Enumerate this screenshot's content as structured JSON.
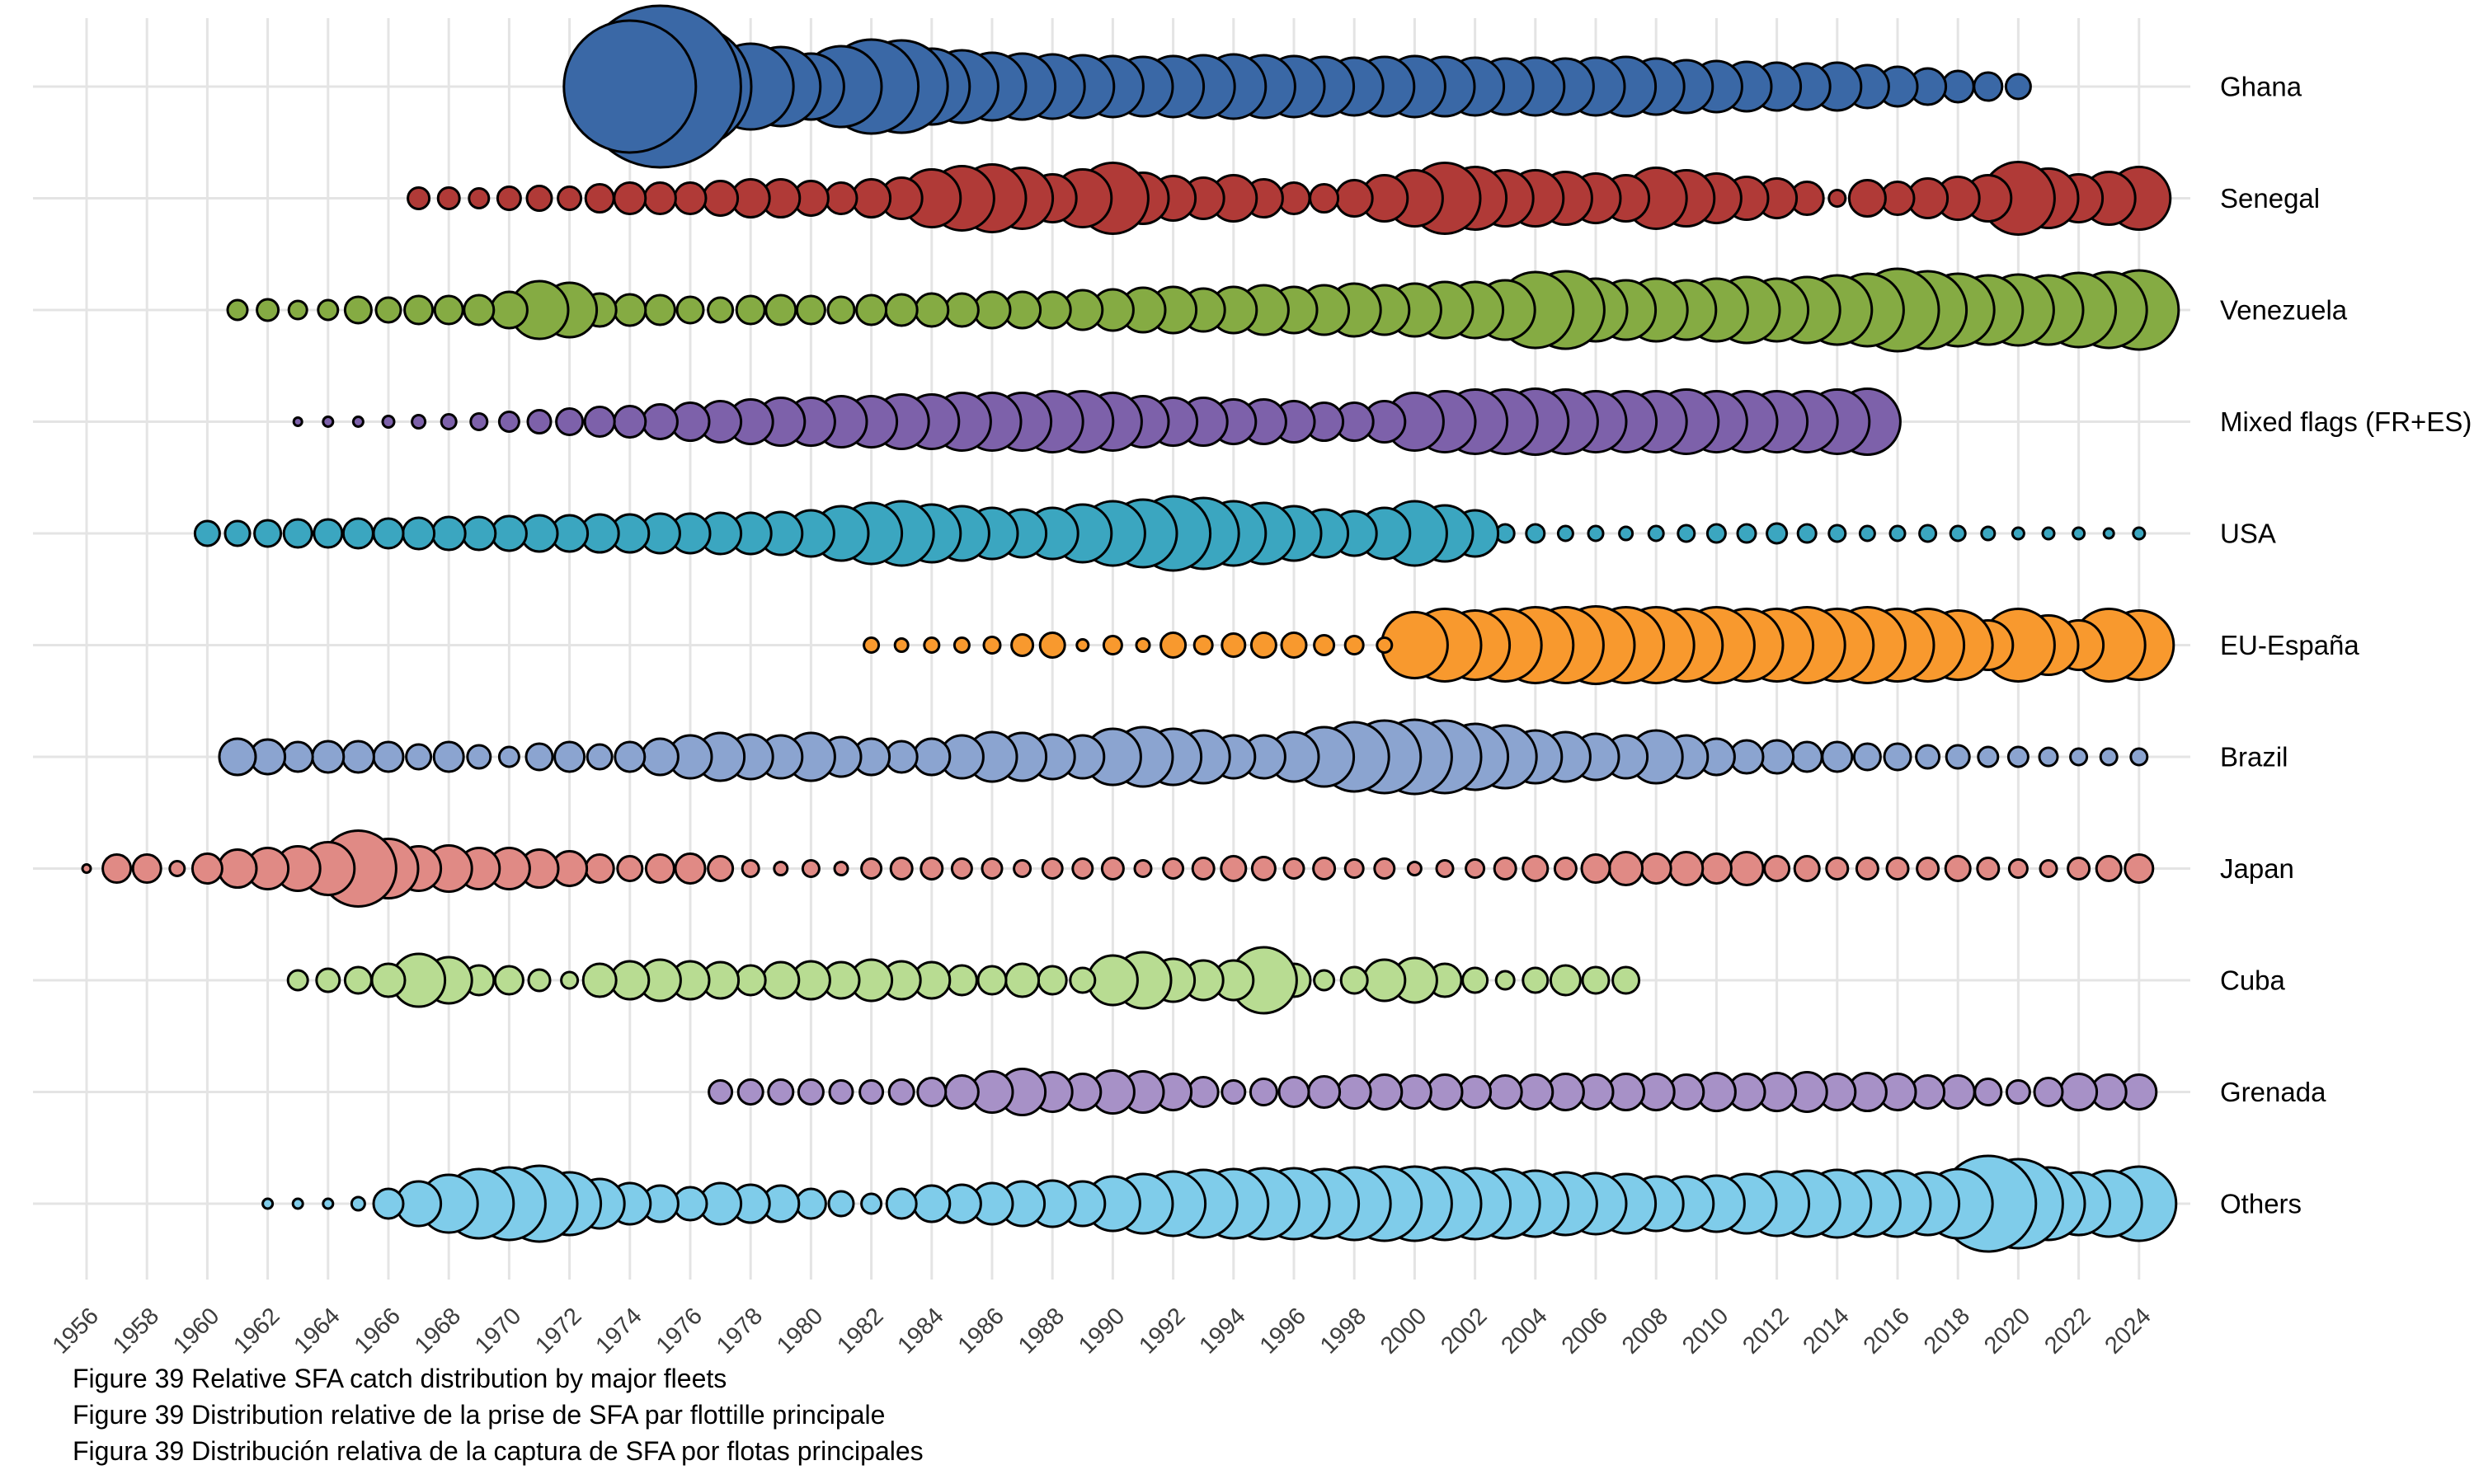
{
  "figure": {
    "captions": [
      "Figure 39 Relative SFA catch distribution by major fleets",
      "Figure 39 Distribution relative de la prise de SFA par flottille principale",
      "Figura 39 Distribución relativa de la captura de SFA por flotas principales"
    ]
  },
  "chart_data": {
    "type": "bubble",
    "title": "Relative SFA catch distribution by major fleets",
    "xlabel": "",
    "ylabel": "",
    "x_axis": {
      "start": 1956,
      "end": 2024,
      "tick_interval": 2,
      "tick_label_angle": -45,
      "tick_color": "#3d3d3d"
    },
    "grid": {
      "on": true,
      "color": "#e4e4e4"
    },
    "legend_position": "row-labels-right",
    "bubble_stroke": "#000000",
    "size_meaning": "bubble radius = relative annual SFA catch of the fleet (px at 3000px canvas width)",
    "series": [
      {
        "name": "Ghana",
        "color": "#3a68a6",
        "start_year": 1974,
        "radii": [
          80,
          98,
          74,
          28,
          52,
          48,
          40,
          49,
          57,
          56,
          46,
          44,
          41,
          40,
          39,
          38,
          37,
          36,
          37,
          38,
          39,
          38,
          37,
          36,
          35,
          36,
          37,
          36,
          35,
          34,
          35,
          34,
          35,
          36,
          34,
          32,
          31,
          30,
          29,
          28,
          29,
          26,
          24,
          22,
          19,
          17,
          15
        ]
      },
      {
        "name": "Senegal",
        "color": "#b03a37",
        "start_year": 1967,
        "radii": [
          13,
          13,
          12,
          14,
          15,
          14,
          17,
          19,
          19,
          19,
          21,
          23,
          23,
          21,
          19,
          23,
          25,
          35,
          39,
          41,
          37,
          29,
          35,
          43,
          31,
          27,
          25,
          28,
          23,
          19,
          17,
          22,
          28,
          34,
          43,
          38,
          34,
          34,
          32,
          30,
          28,
          37,
          34,
          30,
          26,
          24,
          20,
          10,
          22,
          20,
          24,
          26,
          28,
          44,
          36,
          29,
          32,
          38
        ]
      },
      {
        "name": "Venezuela",
        "color": "#85ab43",
        "start_year": 1961,
        "radii": [
          12,
          13,
          11,
          12,
          16,
          15,
          17,
          17,
          18,
          22,
          35,
          33,
          20,
          19,
          18,
          16,
          15,
          17,
          18,
          17,
          16,
          18,
          19,
          20,
          20,
          22,
          22,
          22,
          24,
          25,
          27,
          28,
          26,
          28,
          30,
          28,
          30,
          32,
          30,
          32,
          34,
          34,
          36,
          46,
          47,
          38,
          36,
          38,
          36,
          38,
          40,
          38,
          40,
          42,
          44,
          50,
          47,
          44,
          42,
          43,
          42,
          45,
          46,
          48
        ]
      },
      {
        "name": "Mixed flags (FR+ES)",
        "color": "#7d61aa",
        "start_year": 1963,
        "radii": [
          5,
          6,
          6,
          7,
          8,
          9,
          10,
          12,
          14,
          16,
          18,
          19,
          21,
          23,
          25,
          27,
          29,
          29,
          31,
          31,
          33,
          33,
          35,
          35,
          35,
          37,
          37,
          35,
          31,
          29,
          29,
          27,
          27,
          25,
          23,
          23,
          25,
          35,
          37,
          39,
          39,
          40,
          39,
          37,
          37,
          37,
          39,
          37,
          37,
          37,
          37,
          39,
          40
        ]
      },
      {
        "name": "USA",
        "color": "#3ba6c0",
        "start_year": 1960,
        "radii": [
          15,
          15,
          16,
          17,
          17,
          18,
          18,
          19,
          20,
          20,
          21,
          22,
          22,
          23,
          23,
          24,
          24,
          25,
          25,
          26,
          28,
          33,
          37,
          39,
          35,
          33,
          31,
          29,
          31,
          35,
          39,
          41,
          45,
          43,
          39,
          37,
          33,
          29,
          27,
          31,
          39,
          34,
          28,
          11,
          11,
          9,
          9,
          8,
          9,
          10,
          11,
          11,
          12,
          11,
          10,
          9,
          9,
          10,
          9,
          8,
          7,
          7,
          7,
          6,
          7
        ]
      },
      {
        "name": "EU-España",
        "color": "#f8992e",
        "start_year": 1982,
        "radii": [
          9,
          8,
          9,
          9,
          10,
          13,
          15,
          7,
          11,
          8,
          15,
          11,
          14,
          15,
          15,
          12,
          11,
          9,
          40,
          44,
          42,
          44,
          46,
          46,
          47,
          46,
          46,
          44,
          46,
          44,
          44,
          46,
          44,
          46,
          44,
          44,
          42,
          30,
          44,
          36,
          30,
          44,
          42
        ]
      },
      {
        "name": "Brazil",
        "color": "#8ba4d0",
        "start_year": 1961,
        "radii": [
          22,
          21,
          18,
          19,
          19,
          18,
          15,
          18,
          14,
          12,
          16,
          18,
          15,
          18,
          22,
          26,
          29,
          27,
          26,
          29,
          24,
          22,
          19,
          22,
          26,
          30,
          29,
          27,
          26,
          34,
          36,
          34,
          32,
          26,
          26,
          30,
          36,
          42,
          44,
          45,
          44,
          40,
          38,
          32,
          30,
          28,
          26,
          32,
          26,
          22,
          20,
          20,
          18,
          18,
          16,
          16,
          14,
          14,
          12,
          12,
          11,
          10,
          10,
          10
        ]
      },
      {
        "name": "Japan",
        "color": "#e08a85",
        "start_year": 1956,
        "radii": [
          5,
          17,
          17,
          9,
          18,
          23,
          25,
          27,
          32,
          46,
          36,
          27,
          28,
          25,
          25,
          23,
          21,
          17,
          15,
          17,
          18,
          15,
          10,
          8,
          10,
          8,
          12,
          13,
          13,
          12,
          12,
          10,
          12,
          12,
          13,
          10,
          12,
          13,
          15,
          14,
          12,
          13,
          11,
          12,
          8,
          10,
          11,
          13,
          15,
          13,
          17,
          20,
          18,
          20,
          18,
          20,
          15,
          15,
          13,
          13,
          13,
          13,
          15,
          13,
          11,
          10,
          13,
          15,
          17
        ]
      },
      {
        "name": "Cuba",
        "color": "#b8dc92",
        "start_year": 1963,
        "radii": [
          12,
          14,
          16,
          20,
          32,
          28,
          18,
          17,
          13,
          10,
          20,
          23,
          25,
          23,
          22,
          18,
          22,
          23,
          22,
          25,
          23,
          22,
          18,
          17,
          20,
          17,
          15,
          30,
          34,
          26,
          24,
          24,
          40,
          20,
          12,
          16,
          25,
          27,
          20,
          15,
          11,
          15,
          18,
          16,
          16
        ]
      },
      {
        "name": "Grenada",
        "color": "#a791c7",
        "start_year": 1977,
        "radii": [
          14,
          15,
          15,
          15,
          14,
          14,
          15,
          17,
          20,
          25,
          28,
          24,
          22,
          26,
          25,
          22,
          18,
          14,
          16,
          18,
          19,
          20,
          21,
          20,
          21,
          19,
          20,
          21,
          22,
          21,
          22,
          22,
          21,
          23,
          22,
          23,
          24,
          22,
          23,
          22,
          20,
          20,
          16,
          14,
          17,
          22,
          21,
          21
        ]
      },
      {
        "name": "Others",
        "color": "#7fccea",
        "start_year": 1962,
        "radii": [
          6,
          6,
          6,
          8,
          18,
          27,
          35,
          42,
          44,
          46,
          38,
          30,
          25,
          22,
          20,
          25,
          23,
          22,
          18,
          15,
          12,
          18,
          22,
          23,
          25,
          27,
          28,
          27,
          33,
          36,
          39,
          41,
          42,
          43,
          43,
          42,
          44,
          45,
          45,
          44,
          43,
          42,
          40,
          38,
          37,
          36,
          33,
          33,
          34,
          36,
          39,
          40,
          41,
          40,
          40,
          38,
          42,
          58,
          54,
          44,
          38,
          40,
          45
        ]
      }
    ]
  }
}
